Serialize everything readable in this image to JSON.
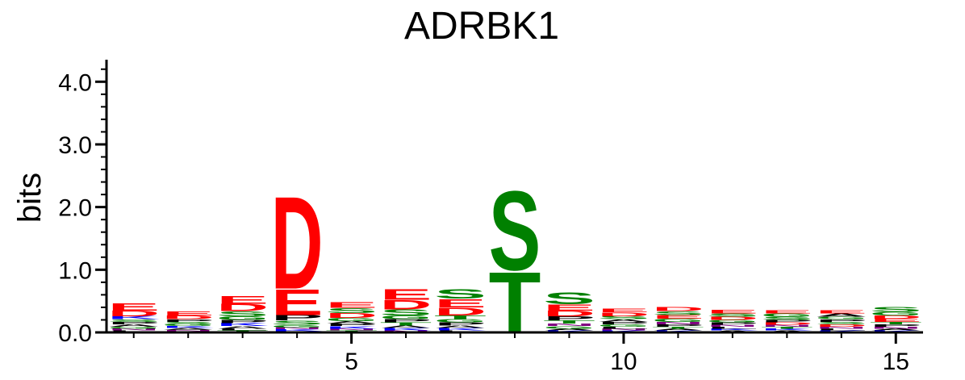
{
  "chart_data": {
    "type": "sequence-logo",
    "title": "ADRBK1",
    "ylabel": "bits",
    "xlabel": "",
    "ylim": [
      0,
      4.3
    ],
    "xlim": [
      0.5,
      15.5
    ],
    "y_ticks": [
      {
        "value": 0.0,
        "label": "0.0"
      },
      {
        "value": 1.0,
        "label": "1.0"
      },
      {
        "value": 2.0,
        "label": "2.0"
      },
      {
        "value": 3.0,
        "label": "3.0"
      },
      {
        "value": 4.0,
        "label": "4.0"
      }
    ],
    "x_ticks": [
      {
        "value": 5,
        "label": "5"
      },
      {
        "value": 10,
        "label": "10"
      },
      {
        "value": 15,
        "label": "15"
      }
    ],
    "residue_colors": {
      "D": "#ff0000",
      "E": "#ff0000",
      "S": "#008000",
      "T": "#008000",
      "G": "#008000",
      "K": "#0000ff",
      "R": "#0000ff",
      "H": "#0000ff",
      "P": "#000000",
      "A": "#000000",
      "L": "#000000",
      "I": "#000000",
      "V": "#000000",
      "N": "#800080",
      "Q": "#800080"
    },
    "positions": [
      {
        "position": 1,
        "letters": [
          {
            "residue": "E",
            "bits": 0.12
          },
          {
            "residue": "D",
            "bits": 0.09
          },
          {
            "residue": "K",
            "bits": 0.05
          },
          {
            "residue": "A",
            "bits": 0.04
          },
          {
            "residue": "P",
            "bits": 0.04
          },
          {
            "residue": "S",
            "bits": 0.04
          },
          {
            "residue": "L",
            "bits": 0.03
          },
          {
            "residue": "N",
            "bits": 0.03
          },
          {
            "residue": "G",
            "bits": 0.03
          }
        ]
      },
      {
        "position": 2,
        "letters": [
          {
            "residue": "E",
            "bits": 0.07
          },
          {
            "residue": "D",
            "bits": 0.06
          },
          {
            "residue": "S",
            "bits": 0.04
          },
          {
            "residue": "P",
            "bits": 0.04
          },
          {
            "residue": "A",
            "bits": 0.03
          },
          {
            "residue": "K",
            "bits": 0.03
          },
          {
            "residue": "G",
            "bits": 0.03
          },
          {
            "residue": "L",
            "bits": 0.02
          },
          {
            "residue": "N",
            "bits": 0.02
          }
        ]
      },
      {
        "position": 3,
        "letters": [
          {
            "residue": "E",
            "bits": 0.13
          },
          {
            "residue": "D",
            "bits": 0.12
          },
          {
            "residue": "S",
            "bits": 0.08
          },
          {
            "residue": "G",
            "bits": 0.06
          },
          {
            "residue": "K",
            "bits": 0.05
          },
          {
            "residue": "P",
            "bits": 0.05
          },
          {
            "residue": "A",
            "bits": 0.04
          },
          {
            "residue": "T",
            "bits": 0.03
          },
          {
            "residue": "L",
            "bits": 0.03
          }
        ]
      },
      {
        "position": 4,
        "letters": [
          {
            "residue": "D",
            "bits": 1.52
          },
          {
            "residue": "E",
            "bits": 0.42
          },
          {
            "residue": "P",
            "bits": 0.09
          },
          {
            "residue": "S",
            "bits": 0.07
          },
          {
            "residue": "G",
            "bits": 0.04
          },
          {
            "residue": "K",
            "bits": 0.03
          },
          {
            "residue": "N",
            "bits": 0.03
          },
          {
            "residue": "A",
            "bits": 0.02
          }
        ]
      },
      {
        "position": 5,
        "letters": [
          {
            "residue": "E",
            "bits": 0.09
          },
          {
            "residue": "D",
            "bits": 0.08
          },
          {
            "residue": "S",
            "bits": 0.08
          },
          {
            "residue": "G",
            "bits": 0.05
          },
          {
            "residue": "K",
            "bits": 0.04
          },
          {
            "residue": "P",
            "bits": 0.04
          },
          {
            "residue": "A",
            "bits": 0.04
          },
          {
            "residue": "T",
            "bits": 0.03
          },
          {
            "residue": "N",
            "bits": 0.03
          }
        ]
      },
      {
        "position": 6,
        "letters": [
          {
            "residue": "E",
            "bits": 0.17
          },
          {
            "residue": "D",
            "bits": 0.15
          },
          {
            "residue": "S",
            "bits": 0.1
          },
          {
            "residue": "G",
            "bits": 0.06
          },
          {
            "residue": "T",
            "bits": 0.05
          },
          {
            "residue": "P",
            "bits": 0.05
          },
          {
            "residue": "K",
            "bits": 0.04
          },
          {
            "residue": "A",
            "bits": 0.04
          },
          {
            "residue": "N",
            "bits": 0.03
          }
        ]
      },
      {
        "position": 7,
        "letters": [
          {
            "residue": "S",
            "bits": 0.15
          },
          {
            "residue": "E",
            "bits": 0.14
          },
          {
            "residue": "D",
            "bits": 0.13
          },
          {
            "residue": "T",
            "bits": 0.06
          },
          {
            "residue": "P",
            "bits": 0.05
          },
          {
            "residue": "G",
            "bits": 0.05
          },
          {
            "residue": "K",
            "bits": 0.04
          },
          {
            "residue": "A",
            "bits": 0.04
          },
          {
            "residue": "L",
            "bits": 0.03
          }
        ]
      },
      {
        "position": 8,
        "letters": [
          {
            "residue": "S",
            "bits": 1.3
          },
          {
            "residue": "T",
            "bits": 1.0
          }
        ]
      },
      {
        "position": 9,
        "letters": [
          {
            "residue": "S",
            "bits": 0.2
          },
          {
            "residue": "E",
            "bits": 0.1
          },
          {
            "residue": "D",
            "bits": 0.09
          },
          {
            "residue": "P",
            "bits": 0.07
          },
          {
            "residue": "T",
            "bits": 0.05
          },
          {
            "residue": "G",
            "bits": 0.04
          },
          {
            "residue": "N",
            "bits": 0.04
          },
          {
            "residue": "K",
            "bits": 0.03
          },
          {
            "residue": "A",
            "bits": 0.03
          }
        ]
      },
      {
        "position": 10,
        "letters": [
          {
            "residue": "D",
            "bits": 0.06
          },
          {
            "residue": "E",
            "bits": 0.06
          },
          {
            "residue": "S",
            "bits": 0.05
          },
          {
            "residue": "G",
            "bits": 0.04
          },
          {
            "residue": "P",
            "bits": 0.04
          },
          {
            "residue": "A",
            "bits": 0.04
          },
          {
            "residue": "K",
            "bits": 0.03
          },
          {
            "residue": "N",
            "bits": 0.03
          },
          {
            "residue": "L",
            "bits": 0.03
          }
        ]
      },
      {
        "position": 11,
        "letters": [
          {
            "residue": "D",
            "bits": 0.07
          },
          {
            "residue": "E",
            "bits": 0.06
          },
          {
            "residue": "S",
            "bits": 0.06
          },
          {
            "residue": "G",
            "bits": 0.05
          },
          {
            "residue": "P",
            "bits": 0.04
          },
          {
            "residue": "N",
            "bits": 0.04
          },
          {
            "residue": "K",
            "bits": 0.03
          },
          {
            "residue": "A",
            "bits": 0.03
          },
          {
            "residue": "T",
            "bits": 0.03
          }
        ]
      },
      {
        "position": 12,
        "letters": [
          {
            "residue": "E",
            "bits": 0.06
          },
          {
            "residue": "D",
            "bits": 0.05
          },
          {
            "residue": "S",
            "bits": 0.05
          },
          {
            "residue": "P",
            "bits": 0.04
          },
          {
            "residue": "G",
            "bits": 0.04
          },
          {
            "residue": "A",
            "bits": 0.03
          },
          {
            "residue": "K",
            "bits": 0.03
          },
          {
            "residue": "L",
            "bits": 0.03
          },
          {
            "residue": "N",
            "bits": 0.03
          }
        ]
      },
      {
        "position": 13,
        "letters": [
          {
            "residue": "S",
            "bits": 0.05
          },
          {
            "residue": "G",
            "bits": 0.05
          },
          {
            "residue": "E",
            "bits": 0.05
          },
          {
            "residue": "D",
            "bits": 0.04
          },
          {
            "residue": "P",
            "bits": 0.04
          },
          {
            "residue": "A",
            "bits": 0.03
          },
          {
            "residue": "K",
            "bits": 0.03
          },
          {
            "residue": "T",
            "bits": 0.03
          },
          {
            "residue": "N",
            "bits": 0.03
          }
        ]
      },
      {
        "position": 14,
        "letters": [
          {
            "residue": "A",
            "bits": 0.05
          },
          {
            "residue": "E",
            "bits": 0.05
          },
          {
            "residue": "D",
            "bits": 0.04
          },
          {
            "residue": "S",
            "bits": 0.04
          },
          {
            "residue": "P",
            "bits": 0.04
          },
          {
            "residue": "G",
            "bits": 0.04
          },
          {
            "residue": "K",
            "bits": 0.03
          },
          {
            "residue": "L",
            "bits": 0.03
          },
          {
            "residue": "N",
            "bits": 0.03
          }
        ]
      },
      {
        "position": 15,
        "letters": [
          {
            "residue": "S",
            "bits": 0.08
          },
          {
            "residue": "G",
            "bits": 0.06
          },
          {
            "residue": "E",
            "bits": 0.05
          },
          {
            "residue": "D",
            "bits": 0.05
          },
          {
            "residue": "P",
            "bits": 0.04
          },
          {
            "residue": "T",
            "bits": 0.04
          },
          {
            "residue": "K",
            "bits": 0.03
          },
          {
            "residue": "A",
            "bits": 0.03
          },
          {
            "residue": "N",
            "bits": 0.03
          }
        ]
      }
    ]
  }
}
